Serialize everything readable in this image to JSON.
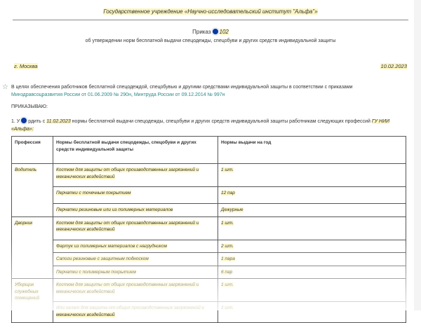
{
  "header": {
    "organization": "Государственное учреждение «Научно-исследовательский институт \"Альфа\"»",
    "order_label": "Приказ",
    "order_number": "102",
    "subject": "об утверждении норм бесплатной выдачи спецодежды, спецобуви и других средств индивидуальной защиты",
    "city": "г. Москва",
    "date": "10.02.2023"
  },
  "body": {
    "intro_text": "В целях обеспечения работников бесплатной спецодеждой, спецобувью и другими средствами индивидуальной защиты в соответствии с приказами ",
    "link1": "Минздравсоцразвития России от 01.06.2009 № 290н",
    "sep": ", ",
    "link2": "Минтруда России от 09.12.2014 № 997н",
    "order_word": "ПРИКАЗЫВАЮ:",
    "item1_a": "1. У",
    "item1_b": "рдить с ",
    "item1_date": "11.02.2023",
    "item1_c": " нормы бесплатной выдачи спецодежды, спецобуви и других средств индивидуальной защиты работникам следующих профессий ",
    "item1_org": "ГУ НИИ «Альфа»:"
  },
  "table": {
    "headers": [
      "Профессия",
      "Нормы бесплатной выдачи спецодежды, спецобуви и других средств индивидуальной защиты",
      "Нормы выдачи на год"
    ],
    "groups": [
      {
        "profession": "Водитель",
        "rows": [
          [
            "Костюм для защиты от общих производственных загрязнений и механических воздействий",
            "1 шт."
          ],
          [
            "Перчатки с точечным покрытием",
            "12 пар"
          ],
          [
            "Перчатки резиновые или из полимерных материалов",
            "Дежурные"
          ]
        ]
      },
      {
        "profession": "Дворник",
        "rows": [
          [
            "Костюм для защиты от общих производственных загрязнений и механических воздействий",
            "1 шт."
          ],
          [
            "Фартук из полимерных материалов с нагрудником",
            "2 шт."
          ],
          [
            "Сапоги резиновые с защитным подноском",
            "1 пара"
          ],
          [
            "Перчатки с полимерным покрытием",
            "6 пар"
          ]
        ]
      },
      {
        "profession": "Уборщик служебных помещений",
        "rows": [
          [
            "Костюм для защиты от общих производственных загрязнений и механических воздействий",
            "1 шт."
          ],
          [
            "Или халат для защиты от общих производственных загрязнений и механических воздействий",
            "1 шт."
          ]
        ]
      }
    ]
  },
  "colors": {
    "highlight": "#fdf6c3",
    "link": "#2a8a86",
    "marker": "#0b3a9e"
  }
}
